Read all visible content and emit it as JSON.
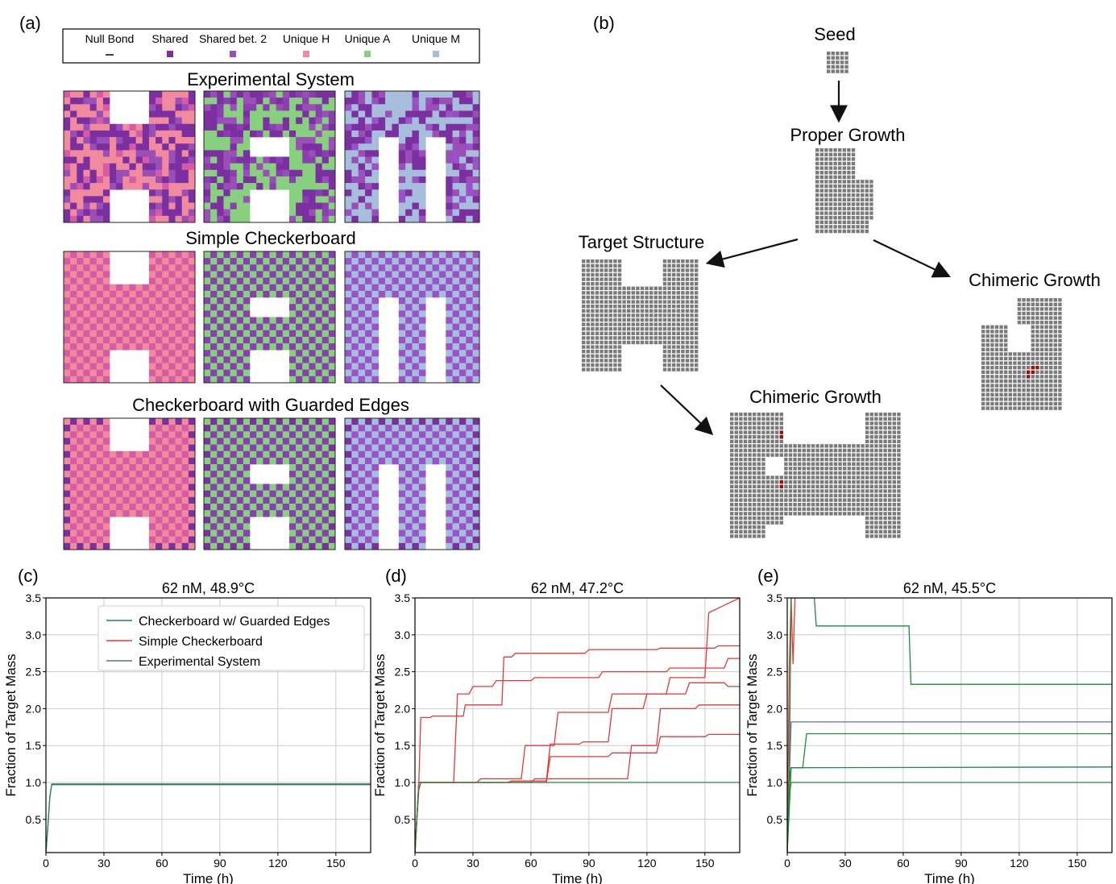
{
  "panel_a": {
    "label": "(a)",
    "legend": [
      {
        "label": "Null Bond",
        "marker": "line",
        "color": "#000000"
      },
      {
        "label": "Shared",
        "marker": "square",
        "color": "#7b2fa0"
      },
      {
        "label": "Shared bet. 2",
        "marker": "square",
        "color": "#9a4fb8"
      },
      {
        "label": "Unique H",
        "marker": "square",
        "color": "#f08a9c"
      },
      {
        "label": "Unique A",
        "marker": "square",
        "color": "#86d07e"
      },
      {
        "label": "Unique M",
        "marker": "square",
        "color": "#a6bedc"
      }
    ],
    "rows": [
      {
        "title": "Experimental System",
        "style": "random"
      },
      {
        "title": "Simple Checkerboard",
        "style": "checker"
      },
      {
        "title": "Checkerboard with Guarded Edges",
        "style": "guarded"
      }
    ],
    "letters": [
      "H",
      "A",
      "M"
    ],
    "colors": {
      "shared": "#7b2fa0",
      "shared2": "#9a4fb8",
      "H": "#f08a9c",
      "A": "#86d07e",
      "M": "#a6bedc",
      "H_alt": "#d65aa6",
      "A_alt": "#8a3fb0",
      "M_alt": "#9a52c8"
    }
  },
  "panel_b": {
    "label": "(b)",
    "nodes": {
      "seed": "Seed",
      "proper": "Proper Growth",
      "target": "Target Structure",
      "chimeric_right": "Chimeric Growth",
      "chimeric_bottom": "Chimeric Growth"
    },
    "tile_color": "#7a7a7a",
    "error_color": "#9a1010"
  },
  "chart_data": [
    {
      "panel": "(c)",
      "type": "line",
      "title": "62 nM, 48.9°C",
      "xlabel": "Time (h)",
      "ylabel": "Fraction of Target Mass",
      "xlim": [
        0,
        168
      ],
      "ylim": [
        0.05,
        3.5
      ],
      "xticks": [
        0,
        30,
        60,
        90,
        120,
        150
      ],
      "yticks": [
        0.5,
        1.0,
        1.5,
        2.0,
        2.5,
        3.0,
        3.5
      ],
      "grid": true,
      "legend_position": "top-right",
      "legend": [
        {
          "name": "Checkerboard w/ Guarded Edges",
          "color": "#1f8a3c"
        },
        {
          "name": "Simple Checkerboard",
          "color": "#e03a3a"
        },
        {
          "name": "Experimental System",
          "color": "#5a6fb0"
        }
      ],
      "series": [
        {
          "name": "Experimental System",
          "color": "#5a6fb0",
          "x": [
            0,
            1,
            2,
            3,
            168
          ],
          "y": [
            0.05,
            0.4,
            0.8,
            0.98,
            0.98
          ]
        },
        {
          "name": "Checkerboard w/ Guarded Edges",
          "color": "#1f8a3c",
          "x": [
            0,
            1,
            2,
            3,
            168
          ],
          "y": [
            0.05,
            0.4,
            0.8,
            0.97,
            0.97
          ]
        }
      ]
    },
    {
      "panel": "(d)",
      "type": "line",
      "title": "62 nM, 47.2°C",
      "xlabel": "Time (h)",
      "ylabel": "Fraction of Target Mass",
      "xlim": [
        0,
        168
      ],
      "ylim": [
        0.05,
        3.5
      ],
      "xticks": [
        0,
        30,
        60,
        90,
        120,
        150
      ],
      "yticks": [
        0.5,
        1.0,
        1.5,
        2.0,
        2.5,
        3.0,
        3.5
      ],
      "grid": true,
      "series": [
        {
          "color": "#e03a3a",
          "x": [
            0,
            2,
            3,
            8,
            9,
            25,
            26,
            45,
            46,
            50,
            52,
            68,
            70,
            88,
            90,
            125,
            127,
            155,
            157,
            168
          ],
          "y": [
            0.05,
            1.0,
            1.88,
            1.88,
            1.9,
            1.9,
            2.05,
            2.05,
            2.7,
            2.7,
            2.75,
            2.75,
            2.75,
            2.75,
            2.8,
            2.8,
            2.82,
            2.82,
            2.85,
            2.85
          ]
        },
        {
          "color": "#e03a3a",
          "x": [
            0,
            2,
            3,
            20,
            22,
            28,
            30,
            40,
            42,
            60,
            62,
            95,
            97,
            130,
            132,
            160,
            162,
            168
          ],
          "y": [
            0.05,
            1.0,
            1.0,
            1.0,
            2.2,
            2.2,
            2.3,
            2.3,
            2.38,
            2.38,
            2.42,
            2.42,
            2.5,
            2.5,
            2.55,
            2.55,
            2.68,
            2.68
          ]
        },
        {
          "color": "#e03a3a",
          "x": [
            0,
            2,
            3,
            32,
            34,
            55,
            57,
            72,
            74,
            100,
            102,
            130,
            132,
            150,
            152,
            168
          ],
          "y": [
            0.05,
            1.0,
            1.0,
            1.0,
            1.05,
            1.05,
            1.5,
            1.5,
            1.95,
            1.95,
            2.2,
            2.2,
            2.42,
            2.42,
            3.3,
            3.5
          ]
        },
        {
          "color": "#e03a3a",
          "x": [
            0,
            2,
            3,
            48,
            50,
            68,
            70,
            85,
            87,
            100,
            102,
            118,
            120,
            140,
            142,
            160,
            162,
            168
          ],
          "y": [
            0.05,
            1.0,
            1.0,
            1.0,
            1.02,
            1.02,
            1.52,
            1.52,
            1.55,
            1.55,
            2.0,
            2.0,
            2.2,
            2.2,
            2.35,
            2.35,
            2.3,
            2.3
          ]
        },
        {
          "color": "#e03a3a",
          "x": [
            0,
            2,
            3,
            60,
            62,
            90,
            92,
            110,
            112,
            125,
            127,
            145,
            147,
            168
          ],
          "y": [
            0.05,
            1.0,
            1.0,
            1.0,
            1.05,
            1.05,
            1.05,
            1.05,
            1.5,
            1.5,
            2.0,
            2.0,
            2.05,
            2.05
          ]
        },
        {
          "color": "#e03a3a",
          "x": [
            0,
            2,
            3,
            68,
            70,
            100,
            102,
            125,
            127,
            150,
            152,
            168
          ],
          "y": [
            0.05,
            1.0,
            1.0,
            1.0,
            1.35,
            1.35,
            1.4,
            1.4,
            1.62,
            1.62,
            1.65,
            1.65
          ]
        },
        {
          "color": "#1f8a3c",
          "x": [
            0,
            1,
            2,
            3,
            168
          ],
          "y": [
            0.05,
            0.5,
            0.9,
            1.0,
            1.0
          ]
        }
      ]
    },
    {
      "panel": "(e)",
      "type": "line",
      "title": "62 nM, 45.5°C",
      "xlabel": "Time (h)",
      "ylabel": "Fraction of Target Mass",
      "xlim": [
        0,
        168
      ],
      "ylim": [
        0.05,
        3.5
      ],
      "xticks": [
        0,
        30,
        60,
        90,
        120,
        150
      ],
      "yticks": [
        0.5,
        1.0,
        1.5,
        2.0,
        2.5,
        3.0,
        3.5
      ],
      "grid": true,
      "series": [
        {
          "color": "#e03a3a",
          "x": [
            0,
            1,
            2,
            3,
            4,
            5
          ],
          "y": [
            0.05,
            2.5,
            3.5,
            2.6,
            3.5,
            3.5
          ]
        },
        {
          "color": "#5a6fb0",
          "x": [
            0,
            1,
            2,
            3,
            4,
            168
          ],
          "y": [
            0.05,
            1.0,
            1.82,
            1.82,
            1.82,
            1.82
          ]
        },
        {
          "color": "#1f8a3c",
          "x": [
            0,
            1,
            2,
            3,
            14,
            15,
            63,
            64,
            168
          ],
          "y": [
            0.05,
            1.0,
            3.5,
            3.5,
            3.5,
            3.12,
            3.12,
            2.33,
            2.33
          ]
        },
        {
          "color": "#1f8a3c",
          "x": [
            0,
            1,
            2,
            8,
            10,
            168
          ],
          "y": [
            0.05,
            1.0,
            1.2,
            1.2,
            1.66,
            1.66
          ]
        },
        {
          "color": "#1f8a3c",
          "x": [
            0,
            1,
            2,
            4,
            168
          ],
          "y": [
            0.05,
            0.6,
            1.2,
            1.2,
            1.21
          ]
        },
        {
          "color": "#1f8a3c",
          "x": [
            0,
            1,
            2,
            168
          ],
          "y": [
            0.05,
            0.8,
            1.0,
            1.0
          ]
        }
      ]
    }
  ]
}
